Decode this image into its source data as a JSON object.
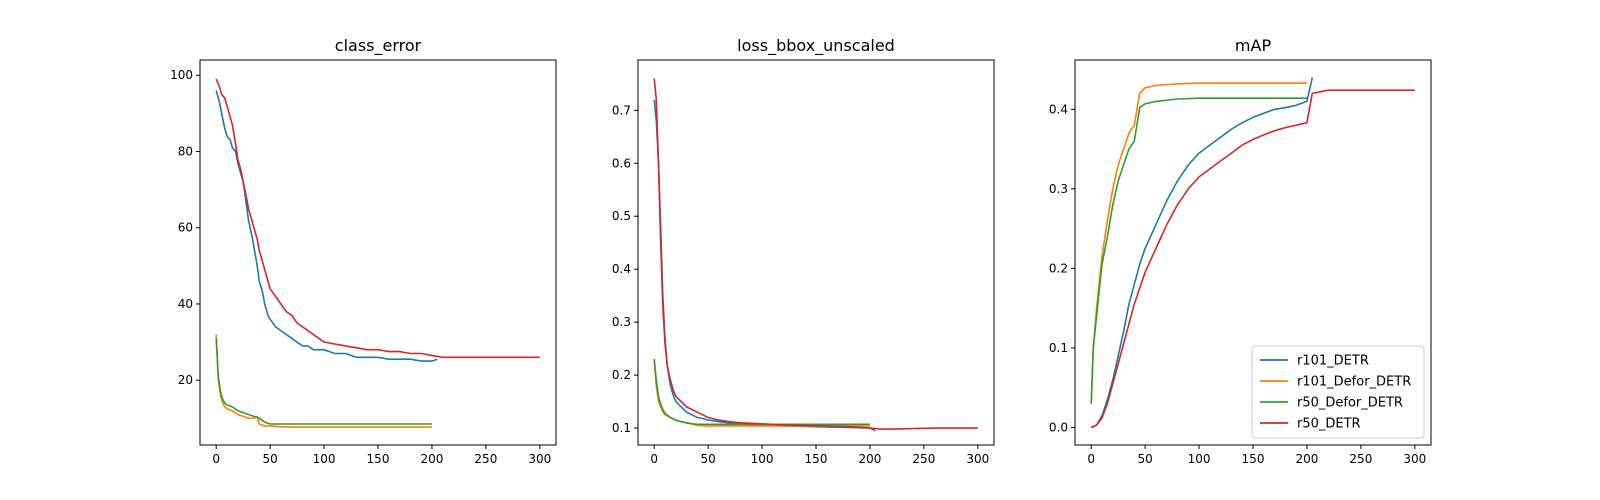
{
  "chart_data": [
    {
      "type": "line",
      "title": "class_error",
      "xlabel": "",
      "ylabel": "",
      "xlim": [
        -15,
        315
      ],
      "ylim": [
        3,
        104
      ],
      "xticks": [
        0,
        50,
        100,
        150,
        200,
        250,
        300
      ],
      "yticks": [
        20,
        40,
        60,
        80,
        100
      ],
      "legend": false,
      "series": [
        {
          "name": "r101_DETR",
          "color": "#1f77b4",
          "x": [
            0,
            3,
            5,
            8,
            10,
            13,
            15,
            18,
            20,
            23,
            25,
            28,
            30,
            33,
            35,
            38,
            40,
            43,
            45,
            48,
            50,
            55,
            60,
            65,
            70,
            75,
            80,
            85,
            90,
            95,
            100,
            110,
            120,
            130,
            140,
            150,
            160,
            170,
            180,
            190,
            200,
            205
          ],
          "y": [
            96,
            93,
            90,
            86,
            84,
            83,
            81,
            80,
            77,
            74,
            72,
            66,
            62,
            58,
            55,
            50,
            46,
            43,
            40,
            37,
            36,
            34,
            33,
            32,
            31,
            30,
            29,
            29,
            28,
            28,
            28,
            27,
            27,
            26,
            26,
            26,
            25.5,
            25.5,
            25.5,
            25,
            25,
            25.5
          ]
        },
        {
          "name": "r101_Defor_DETR",
          "color": "#ff7f0e",
          "x": [
            0,
            2,
            4,
            6,
            8,
            10,
            15,
            20,
            25,
            30,
            35,
            38,
            40,
            45,
            50,
            60,
            70,
            80,
            90,
            100,
            120,
            140,
            160,
            180,
            200
          ],
          "y": [
            32,
            20,
            16,
            14,
            13,
            12.5,
            12,
            11,
            10.5,
            10,
            10,
            10.5,
            8.5,
            8,
            8,
            7.8,
            7.7,
            7.7,
            7.7,
            7.7,
            7.7,
            7.7,
            7.7,
            7.7,
            7.7
          ]
        },
        {
          "name": "r50_Defor_DETR",
          "color": "#2ca02c",
          "x": [
            0,
            2,
            4,
            6,
            8,
            10,
            15,
            20,
            25,
            30,
            35,
            40,
            45,
            50,
            60,
            70,
            80,
            90,
            100,
            120,
            140,
            160,
            180,
            200
          ],
          "y": [
            31,
            21,
            17,
            15,
            14,
            13.5,
            13,
            12,
            11.5,
            11,
            10.5,
            10,
            9,
            8.5,
            8.5,
            8.5,
            8.5,
            8.5,
            8.5,
            8.5,
            8.5,
            8.5,
            8.5,
            8.5
          ]
        },
        {
          "name": "r50_DETR",
          "color": "#d62728",
          "x": [
            0,
            3,
            5,
            8,
            10,
            13,
            15,
            18,
            20,
            23,
            25,
            28,
            30,
            33,
            35,
            38,
            40,
            43,
            45,
            48,
            50,
            55,
            60,
            65,
            70,
            75,
            80,
            85,
            90,
            95,
            100,
            110,
            120,
            130,
            140,
            150,
            160,
            170,
            180,
            190,
            200,
            210,
            220,
            230,
            240,
            250,
            260,
            270,
            280,
            290,
            300
          ],
          "y": [
            99,
            97,
            95,
            94,
            92,
            89,
            87,
            82,
            78,
            75,
            72,
            68,
            65,
            62,
            60,
            57,
            54,
            51,
            49,
            46,
            44,
            42,
            40,
            38,
            37,
            35,
            34,
            33,
            32,
            31,
            30,
            29.5,
            29,
            28.5,
            28,
            28,
            27.5,
            27.5,
            27,
            27,
            26.5,
            26,
            26,
            26,
            26,
            26,
            26,
            26,
            26,
            26,
            26
          ]
        }
      ]
    },
    {
      "type": "line",
      "title": "loss_bbox_unscaled",
      "xlabel": "",
      "ylabel": "",
      "xlim": [
        -15,
        315
      ],
      "ylim": [
        0.068,
        0.795
      ],
      "xticks": [
        0,
        50,
        100,
        150,
        200,
        250,
        300
      ],
      "yticks": [
        0.1,
        0.2,
        0.3,
        0.4,
        0.5,
        0.6,
        0.7
      ],
      "legend": false,
      "series": [
        {
          "name": "r101_DETR",
          "color": "#1f77b4",
          "x": [
            0,
            2,
            4,
            6,
            8,
            10,
            12,
            15,
            18,
            20,
            25,
            30,
            35,
            40,
            45,
            50,
            60,
            70,
            80,
            100,
            120,
            140,
            160,
            180,
            200,
            205
          ],
          "y": [
            0.72,
            0.68,
            0.6,
            0.48,
            0.35,
            0.27,
            0.22,
            0.18,
            0.16,
            0.15,
            0.14,
            0.13,
            0.125,
            0.12,
            0.118,
            0.115,
            0.112,
            0.11,
            0.108,
            0.105,
            0.104,
            0.103,
            0.102,
            0.101,
            0.1,
            0.095
          ]
        },
        {
          "name": "r101_Defor_DETR",
          "color": "#ff7f0e",
          "x": [
            0,
            2,
            4,
            6,
            8,
            10,
            15,
            20,
            25,
            30,
            35,
            40,
            50,
            60,
            80,
            100,
            120,
            140,
            160,
            180,
            200
          ],
          "y": [
            0.23,
            0.18,
            0.15,
            0.14,
            0.13,
            0.125,
            0.12,
            0.115,
            0.112,
            0.11,
            0.108,
            0.105,
            0.104,
            0.104,
            0.104,
            0.104,
            0.104,
            0.104,
            0.104,
            0.104,
            0.104
          ]
        },
        {
          "name": "r50_Defor_DETR",
          "color": "#2ca02c",
          "x": [
            0,
            2,
            4,
            6,
            8,
            10,
            15,
            20,
            25,
            30,
            35,
            40,
            50,
            60,
            80,
            100,
            120,
            140,
            160,
            180,
            200
          ],
          "y": [
            0.23,
            0.19,
            0.16,
            0.145,
            0.135,
            0.128,
            0.12,
            0.115,
            0.112,
            0.11,
            0.108,
            0.107,
            0.107,
            0.107,
            0.107,
            0.107,
            0.107,
            0.107,
            0.107,
            0.107,
            0.107
          ]
        },
        {
          "name": "r50_DETR",
          "color": "#d62728",
          "x": [
            0,
            2,
            4,
            6,
            8,
            10,
            12,
            15,
            18,
            20,
            25,
            30,
            35,
            40,
            45,
            50,
            60,
            70,
            80,
            100,
            120,
            140,
            160,
            180,
            200,
            210,
            220,
            240,
            260,
            280,
            300
          ],
          "y": [
            0.76,
            0.72,
            0.6,
            0.45,
            0.33,
            0.26,
            0.22,
            0.19,
            0.17,
            0.16,
            0.15,
            0.14,
            0.135,
            0.13,
            0.125,
            0.12,
            0.115,
            0.112,
            0.11,
            0.108,
            0.106,
            0.105,
            0.104,
            0.103,
            0.1,
            0.098,
            0.098,
            0.099,
            0.1,
            0.1,
            0.1
          ]
        }
      ]
    },
    {
      "type": "line",
      "title": "mAP",
      "xlabel": "",
      "ylabel": "",
      "xlim": [
        -15,
        315
      ],
      "ylim": [
        -0.022,
        0.462
      ],
      "xticks": [
        0,
        50,
        100,
        150,
        200,
        250,
        300
      ],
      "yticks": [
        0.0,
        0.1,
        0.2,
        0.3,
        0.4
      ],
      "legend": true,
      "legend_location": "lower right",
      "series": [
        {
          "name": "r101_DETR",
          "color": "#1f77b4",
          "x": [
            0,
            5,
            10,
            15,
            20,
            25,
            30,
            35,
            40,
            45,
            50,
            60,
            70,
            80,
            90,
            100,
            110,
            120,
            130,
            140,
            150,
            160,
            170,
            180,
            190,
            200,
            205
          ],
          "y": [
            0,
            0.003,
            0.015,
            0.035,
            0.06,
            0.09,
            0.12,
            0.155,
            0.18,
            0.205,
            0.225,
            0.255,
            0.285,
            0.31,
            0.33,
            0.345,
            0.355,
            0.365,
            0.375,
            0.383,
            0.39,
            0.395,
            0.4,
            0.402,
            0.405,
            0.41,
            0.44
          ]
        },
        {
          "name": "r101_Defor_DETR",
          "color": "#ff7f0e",
          "x": [
            0,
            2,
            5,
            8,
            10,
            15,
            20,
            25,
            30,
            35,
            40,
            45,
            50,
            60,
            80,
            100,
            120,
            140,
            160,
            180,
            200
          ],
          "y": [
            0.03,
            0.1,
            0.15,
            0.19,
            0.215,
            0.26,
            0.3,
            0.33,
            0.35,
            0.37,
            0.38,
            0.42,
            0.427,
            0.43,
            0.432,
            0.433,
            0.433,
            0.433,
            0.433,
            0.433,
            0.433
          ]
        },
        {
          "name": "r50_Defor_DETR",
          "color": "#2ca02c",
          "x": [
            0,
            2,
            5,
            8,
            10,
            15,
            20,
            25,
            30,
            35,
            40,
            45,
            50,
            60,
            80,
            100,
            120,
            140,
            160,
            180,
            200
          ],
          "y": [
            0.03,
            0.1,
            0.14,
            0.18,
            0.205,
            0.24,
            0.28,
            0.31,
            0.33,
            0.35,
            0.36,
            0.402,
            0.407,
            0.41,
            0.413,
            0.414,
            0.414,
            0.414,
            0.414,
            0.414,
            0.414
          ]
        },
        {
          "name": "r50_DETR",
          "color": "#d62728",
          "x": [
            0,
            5,
            10,
            15,
            20,
            25,
            30,
            35,
            40,
            45,
            50,
            60,
            70,
            80,
            90,
            100,
            110,
            120,
            130,
            140,
            150,
            160,
            170,
            180,
            190,
            200,
            205,
            220,
            240,
            260,
            280,
            300
          ],
          "y": [
            0,
            0.003,
            0.012,
            0.03,
            0.055,
            0.08,
            0.105,
            0.13,
            0.155,
            0.175,
            0.195,
            0.225,
            0.255,
            0.28,
            0.3,
            0.315,
            0.325,
            0.335,
            0.345,
            0.355,
            0.362,
            0.368,
            0.373,
            0.377,
            0.38,
            0.383,
            0.42,
            0.424,
            0.424,
            0.424,
            0.424,
            0.424
          ]
        }
      ]
    }
  ]
}
